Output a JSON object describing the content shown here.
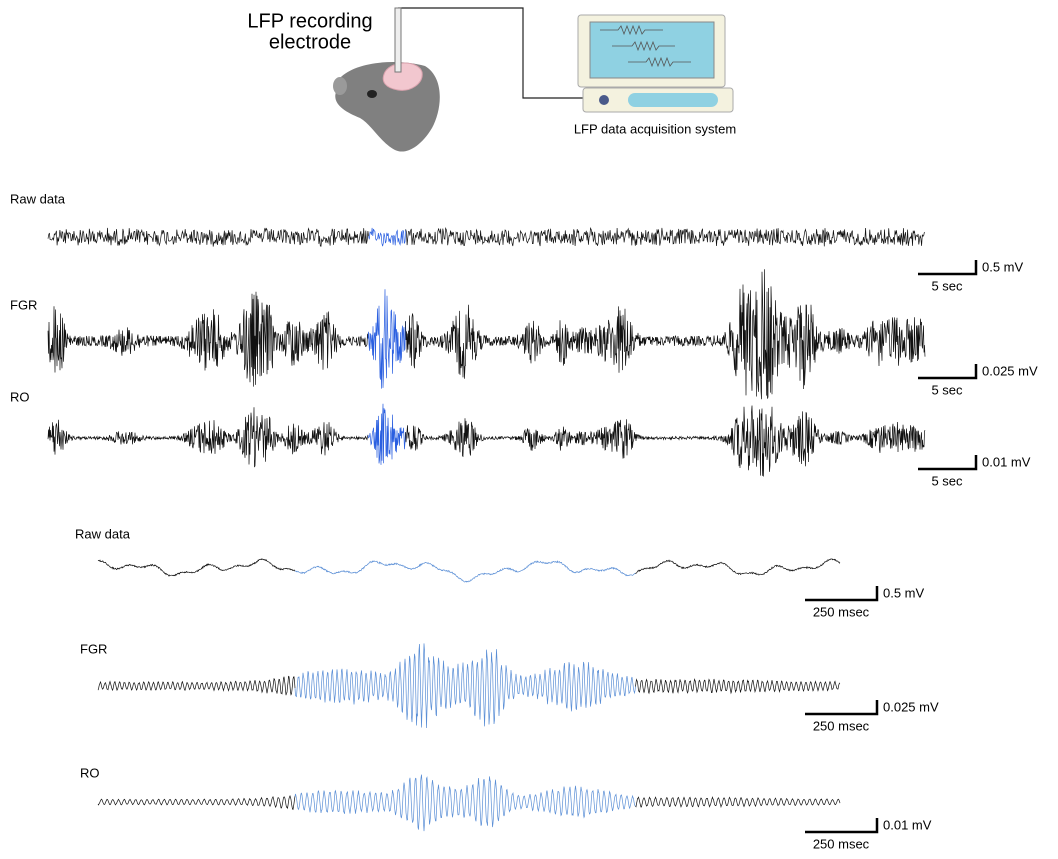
{
  "setup": {
    "electrode_label": [
      "LFP recording",
      "electrode"
    ],
    "system_label": "LFP data acquisition system"
  },
  "overview": {
    "traces": [
      {
        "label": "Raw data",
        "scale_y": "0.5 mV",
        "scale_x": "5 sec"
      },
      {
        "label": "FGR",
        "scale_y": "0.025 mV",
        "scale_x": "5 sec"
      },
      {
        "label": "RO",
        "scale_y": "0.01 mV",
        "scale_x": "5 sec"
      }
    ]
  },
  "zoom": {
    "traces": [
      {
        "label": "Raw data",
        "scale_y": "0.5 mV",
        "scale_x": "250 msec"
      },
      {
        "label": "FGR",
        "scale_y": "0.025 mV",
        "scale_x": "250 msec"
      },
      {
        "label": "RO",
        "scale_y": "0.01 mV",
        "scale_x": "250 msec"
      }
    ]
  }
}
